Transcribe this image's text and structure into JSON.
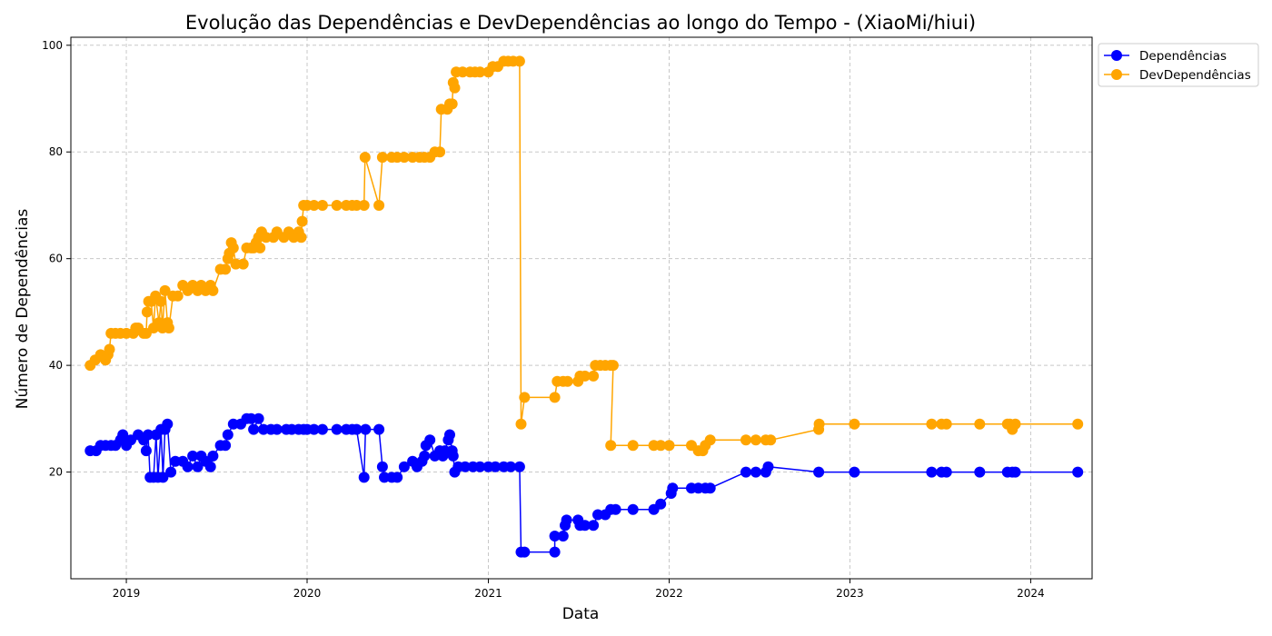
{
  "chart_data": {
    "type": "line",
    "title": "Evolução das Dependências e DevDependências ao longo do Tempo - (XiaoMi/hiui)",
    "xlabel": "Data",
    "ylabel": "Número de Dependências",
    "x_range": [
      "2018-09-11",
      "2024-05-04"
    ],
    "ylim": [
      0,
      101.5
    ],
    "x_ticks": [
      "2019",
      "2020",
      "2021",
      "2022",
      "2023",
      "2024"
    ],
    "x_tick_dates": [
      "2019-01-01",
      "2020-01-01",
      "2021-01-01",
      "2022-01-01",
      "2023-01-01",
      "2024-01-01"
    ],
    "y_ticks": [
      20,
      40,
      60,
      80,
      100
    ],
    "grid": true,
    "legend_position": "outside-top-right",
    "colors": {
      "Dependências": "#0000ff",
      "DevDependências": "#ffa500"
    },
    "series": [
      {
        "name": "Dependências",
        "color": "#0000ff",
        "points": [
          [
            "2018-10-20",
            24
          ],
          [
            "2018-11-01",
            24
          ],
          [
            "2018-11-10",
            25
          ],
          [
            "2018-11-20",
            25
          ],
          [
            "2018-12-01",
            25
          ],
          [
            "2018-12-10",
            25
          ],
          [
            "2018-12-20",
            26
          ],
          [
            "2018-12-25",
            27
          ],
          [
            "2019-01-01",
            25
          ],
          [
            "2019-01-10",
            26
          ],
          [
            "2019-01-25",
            27
          ],
          [
            "2019-02-05",
            26
          ],
          [
            "2019-02-10",
            24
          ],
          [
            "2019-02-14",
            27
          ],
          [
            "2019-02-18",
            19
          ],
          [
            "2019-02-25",
            19
          ],
          [
            "2019-03-02",
            27
          ],
          [
            "2019-03-06",
            19
          ],
          [
            "2019-03-12",
            28
          ],
          [
            "2019-03-16",
            19
          ],
          [
            "2019-03-20",
            28
          ],
          [
            "2019-03-25",
            29
          ],
          [
            "2019-04-01",
            20
          ],
          [
            "2019-04-10",
            22
          ],
          [
            "2019-04-25",
            22
          ],
          [
            "2019-05-05",
            21
          ],
          [
            "2019-05-15",
            23
          ],
          [
            "2019-05-25",
            21
          ],
          [
            "2019-06-01",
            23
          ],
          [
            "2019-06-10",
            22
          ],
          [
            "2019-06-20",
            21
          ],
          [
            "2019-06-25",
            23
          ],
          [
            "2019-07-10",
            25
          ],
          [
            "2019-07-20",
            25
          ],
          [
            "2019-07-25",
            27
          ],
          [
            "2019-08-05",
            29
          ],
          [
            "2019-08-20",
            29
          ],
          [
            "2019-09-01",
            30
          ],
          [
            "2019-09-10",
            30
          ],
          [
            "2019-09-15",
            28
          ],
          [
            "2019-09-25",
            30
          ],
          [
            "2019-10-05",
            28
          ],
          [
            "2019-10-20",
            28
          ],
          [
            "2019-11-01",
            28
          ],
          [
            "2019-11-20",
            28
          ],
          [
            "2019-12-01",
            28
          ],
          [
            "2019-12-15",
            28
          ],
          [
            "2019-12-25",
            28
          ],
          [
            "2020-01-01",
            28
          ],
          [
            "2020-01-15",
            28
          ],
          [
            "2020-02-01",
            28
          ],
          [
            "2020-03-01",
            28
          ],
          [
            "2020-03-20",
            28
          ],
          [
            "2020-04-01",
            28
          ],
          [
            "2020-04-10",
            28
          ],
          [
            "2020-04-25",
            19
          ],
          [
            "2020-04-28",
            28
          ],
          [
            "2020-05-25",
            28
          ],
          [
            "2020-06-01",
            21
          ],
          [
            "2020-06-05",
            19
          ],
          [
            "2020-06-20",
            19
          ],
          [
            "2020-07-01",
            19
          ],
          [
            "2020-07-15",
            21
          ],
          [
            "2020-08-01",
            22
          ],
          [
            "2020-08-10",
            21
          ],
          [
            "2020-08-20",
            22
          ],
          [
            "2020-08-25",
            23
          ],
          [
            "2020-08-28",
            25
          ],
          [
            "2020-09-05",
            26
          ],
          [
            "2020-09-15",
            23
          ],
          [
            "2020-09-25",
            24
          ],
          [
            "2020-10-01",
            23
          ],
          [
            "2020-10-05",
            24
          ],
          [
            "2020-10-12",
            26
          ],
          [
            "2020-10-15",
            27
          ],
          [
            "2020-10-20",
            24
          ],
          [
            "2020-10-22",
            23
          ],
          [
            "2020-10-25",
            20
          ],
          [
            "2020-11-01",
            21
          ],
          [
            "2020-11-15",
            21
          ],
          [
            "2020-12-01",
            21
          ],
          [
            "2020-12-15",
            21
          ],
          [
            "2021-01-01",
            21
          ],
          [
            "2021-01-15",
            21
          ],
          [
            "2021-02-01",
            21
          ],
          [
            "2021-02-15",
            21
          ],
          [
            "2021-03-05",
            21
          ],
          [
            "2021-03-08",
            5
          ],
          [
            "2021-03-15",
            5
          ],
          [
            "2021-05-15",
            5
          ],
          [
            "2021-05-15",
            8
          ],
          [
            "2021-06-01",
            8
          ],
          [
            "2021-06-05",
            10
          ],
          [
            "2021-06-08",
            11
          ],
          [
            "2021-07-01",
            11
          ],
          [
            "2021-07-05",
            10
          ],
          [
            "2021-07-15",
            10
          ],
          [
            "2021-08-01",
            10
          ],
          [
            "2021-08-10",
            12
          ],
          [
            "2021-08-25",
            12
          ],
          [
            "2021-09-05",
            13
          ],
          [
            "2021-09-15",
            13
          ],
          [
            "2021-10-20",
            13
          ],
          [
            "2021-12-01",
            13
          ],
          [
            "2021-12-15",
            14
          ],
          [
            "2022-01-05",
            16
          ],
          [
            "2022-01-08",
            17
          ],
          [
            "2022-02-15",
            17
          ],
          [
            "2022-03-01",
            17
          ],
          [
            "2022-03-15",
            17
          ],
          [
            "2022-03-25",
            17
          ],
          [
            "2022-06-05",
            20
          ],
          [
            "2022-06-25",
            20
          ],
          [
            "2022-07-15",
            20
          ],
          [
            "2022-07-20",
            21
          ],
          [
            "2022-10-30",
            20
          ],
          [
            "2023-01-10",
            20
          ],
          [
            "2023-06-15",
            20
          ],
          [
            "2023-07-05",
            20
          ],
          [
            "2023-07-15",
            20
          ],
          [
            "2023-09-20",
            20
          ],
          [
            "2023-11-15",
            20
          ],
          [
            "2023-11-25",
            20
          ],
          [
            "2023-12-01",
            20
          ],
          [
            "2024-04-05",
            20
          ]
        ]
      },
      {
        "name": "DevDependências",
        "color": "#ffa500",
        "points": [
          [
            "2018-10-20",
            40
          ],
          [
            "2018-10-30",
            41
          ],
          [
            "2018-11-10",
            42
          ],
          [
            "2018-11-20",
            41
          ],
          [
            "2018-11-25",
            42
          ],
          [
            "2018-11-28",
            43
          ],
          [
            "2018-12-01",
            46
          ],
          [
            "2018-12-10",
            46
          ],
          [
            "2018-12-20",
            46
          ],
          [
            "2019-01-01",
            46
          ],
          [
            "2019-01-15",
            46
          ],
          [
            "2019-01-20",
            47
          ],
          [
            "2019-01-25",
            47
          ],
          [
            "2019-02-05",
            46
          ],
          [
            "2019-02-10",
            46
          ],
          [
            "2019-02-12",
            50
          ],
          [
            "2019-02-15",
            52
          ],
          [
            "2019-02-20",
            52
          ],
          [
            "2019-02-25",
            47
          ],
          [
            "2019-03-01",
            53
          ],
          [
            "2019-03-08",
            48
          ],
          [
            "2019-03-12",
            52
          ],
          [
            "2019-03-15",
            47
          ],
          [
            "2019-03-20",
            54
          ],
          [
            "2019-03-25",
            48
          ],
          [
            "2019-03-28",
            47
          ],
          [
            "2019-04-05",
            53
          ],
          [
            "2019-04-15",
            53
          ],
          [
            "2019-04-25",
            55
          ],
          [
            "2019-05-05",
            54
          ],
          [
            "2019-05-15",
            55
          ],
          [
            "2019-05-25",
            54
          ],
          [
            "2019-06-01",
            55
          ],
          [
            "2019-06-10",
            54
          ],
          [
            "2019-06-20",
            55
          ],
          [
            "2019-06-25",
            54
          ],
          [
            "2019-07-10",
            58
          ],
          [
            "2019-07-20",
            58
          ],
          [
            "2019-07-25",
            60
          ],
          [
            "2019-07-28",
            61
          ],
          [
            "2019-08-01",
            63
          ],
          [
            "2019-08-05",
            62
          ],
          [
            "2019-08-10",
            59
          ],
          [
            "2019-08-25",
            59
          ],
          [
            "2019-09-01",
            62
          ],
          [
            "2019-09-10",
            62
          ],
          [
            "2019-09-15",
            62
          ],
          [
            "2019-09-20",
            63
          ],
          [
            "2019-09-25",
            64
          ],
          [
            "2019-09-28",
            62
          ],
          [
            "2019-10-01",
            65
          ],
          [
            "2019-10-10",
            64
          ],
          [
            "2019-10-25",
            64
          ],
          [
            "2019-11-01",
            65
          ],
          [
            "2019-11-15",
            64
          ],
          [
            "2019-11-25",
            65
          ],
          [
            "2019-12-05",
            64
          ],
          [
            "2019-12-15",
            65
          ],
          [
            "2019-12-20",
            64
          ],
          [
            "2019-12-22",
            67
          ],
          [
            "2019-12-25",
            70
          ],
          [
            "2020-01-01",
            70
          ],
          [
            "2020-01-15",
            70
          ],
          [
            "2020-02-01",
            70
          ],
          [
            "2020-03-01",
            70
          ],
          [
            "2020-03-20",
            70
          ],
          [
            "2020-04-01",
            70
          ],
          [
            "2020-04-10",
            70
          ],
          [
            "2020-04-25",
            70
          ],
          [
            "2020-04-27",
            79
          ],
          [
            "2020-05-25",
            70
          ],
          [
            "2020-06-01",
            79
          ],
          [
            "2020-06-20",
            79
          ],
          [
            "2020-07-01",
            79
          ],
          [
            "2020-07-15",
            79
          ],
          [
            "2020-08-01",
            79
          ],
          [
            "2020-08-15",
            79
          ],
          [
            "2020-08-25",
            79
          ],
          [
            "2020-09-05",
            79
          ],
          [
            "2020-09-15",
            80
          ],
          [
            "2020-09-25",
            80
          ],
          [
            "2020-09-28",
            88
          ],
          [
            "2020-10-10",
            88
          ],
          [
            "2020-10-15",
            89
          ],
          [
            "2020-10-20",
            89
          ],
          [
            "2020-10-22",
            93
          ],
          [
            "2020-10-25",
            92
          ],
          [
            "2020-10-28",
            95
          ],
          [
            "2020-11-10",
            95
          ],
          [
            "2020-11-25",
            95
          ],
          [
            "2020-12-05",
            95
          ],
          [
            "2020-12-15",
            95
          ],
          [
            "2021-01-01",
            95
          ],
          [
            "2021-01-10",
            96
          ],
          [
            "2021-01-20",
            96
          ],
          [
            "2021-02-01",
            97
          ],
          [
            "2021-02-10",
            97
          ],
          [
            "2021-02-20",
            97
          ],
          [
            "2021-03-05",
            97
          ],
          [
            "2021-03-08",
            29
          ],
          [
            "2021-03-15",
            34
          ],
          [
            "2021-05-15",
            34
          ],
          [
            "2021-05-20",
            37
          ],
          [
            "2021-06-01",
            37
          ],
          [
            "2021-06-10",
            37
          ],
          [
            "2021-07-01",
            37
          ],
          [
            "2021-07-05",
            38
          ],
          [
            "2021-07-15",
            38
          ],
          [
            "2021-08-01",
            38
          ],
          [
            "2021-08-05",
            40
          ],
          [
            "2021-08-15",
            40
          ],
          [
            "2021-08-25",
            40
          ],
          [
            "2021-09-05",
            40
          ],
          [
            "2021-09-10",
            40
          ],
          [
            "2021-09-05",
            25
          ],
          [
            "2021-10-20",
            25
          ],
          [
            "2021-12-01",
            25
          ],
          [
            "2021-12-15",
            25
          ],
          [
            "2022-01-01",
            25
          ],
          [
            "2022-02-15",
            25
          ],
          [
            "2022-03-01",
            24
          ],
          [
            "2022-03-10",
            24
          ],
          [
            "2022-03-15",
            25
          ],
          [
            "2022-03-25",
            26
          ],
          [
            "2022-06-05",
            26
          ],
          [
            "2022-06-25",
            26
          ],
          [
            "2022-07-15",
            26
          ],
          [
            "2022-07-25",
            26
          ],
          [
            "2022-10-30",
            28
          ],
          [
            "2022-10-31",
            29
          ],
          [
            "2023-01-10",
            29
          ],
          [
            "2023-06-15",
            29
          ],
          [
            "2023-07-05",
            29
          ],
          [
            "2023-07-15",
            29
          ],
          [
            "2023-09-20",
            29
          ],
          [
            "2023-11-15",
            29
          ],
          [
            "2023-11-20",
            29
          ],
          [
            "2023-11-25",
            28
          ],
          [
            "2023-12-01",
            29
          ],
          [
            "2024-04-05",
            29
          ]
        ]
      }
    ]
  }
}
